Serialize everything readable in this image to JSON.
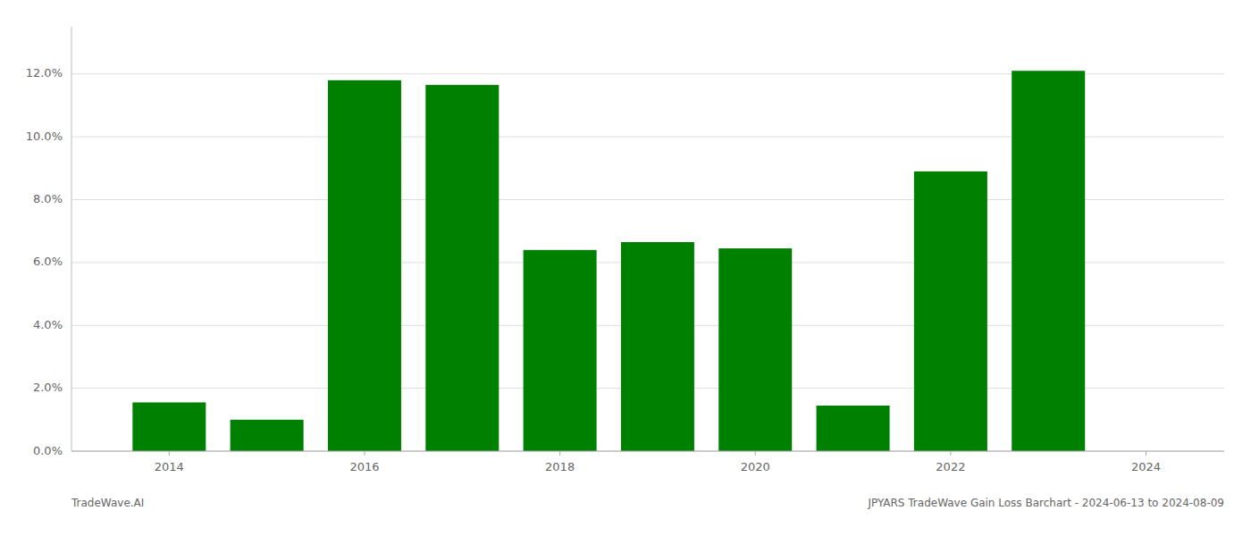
{
  "chart_data": {
    "type": "bar",
    "x": [
      2014,
      2015,
      2016,
      2017,
      2018,
      2019,
      2020,
      2021,
      2022,
      2023
    ],
    "values": [
      0.0155,
      0.01,
      0.118,
      0.1165,
      0.064,
      0.0665,
      0.0645,
      0.0145,
      0.089,
      0.121
    ],
    "color": "#008000",
    "xlim": [
      2013.0,
      2024.8
    ],
    "xticks": [
      2014,
      2016,
      2018,
      2020,
      2022,
      2024
    ],
    "ylim": [
      0.0,
      0.135
    ],
    "yticks": [
      {
        "value": 0.0,
        "label": "0.0%"
      },
      {
        "value": 0.02,
        "label": "2.0%"
      },
      {
        "value": 0.04,
        "label": "4.0%"
      },
      {
        "value": 0.06,
        "label": "6.0%"
      },
      {
        "value": 0.08,
        "label": "8.0%"
      },
      {
        "value": 0.1,
        "label": "10.0%"
      },
      {
        "value": 0.12,
        "label": "12.0%"
      }
    ],
    "grid": true,
    "annotations": [
      "TradeWave.AI",
      "JPYARS TradeWave Gain Loss Barchart - 2024-06-13 to 2024-08-09"
    ]
  }
}
